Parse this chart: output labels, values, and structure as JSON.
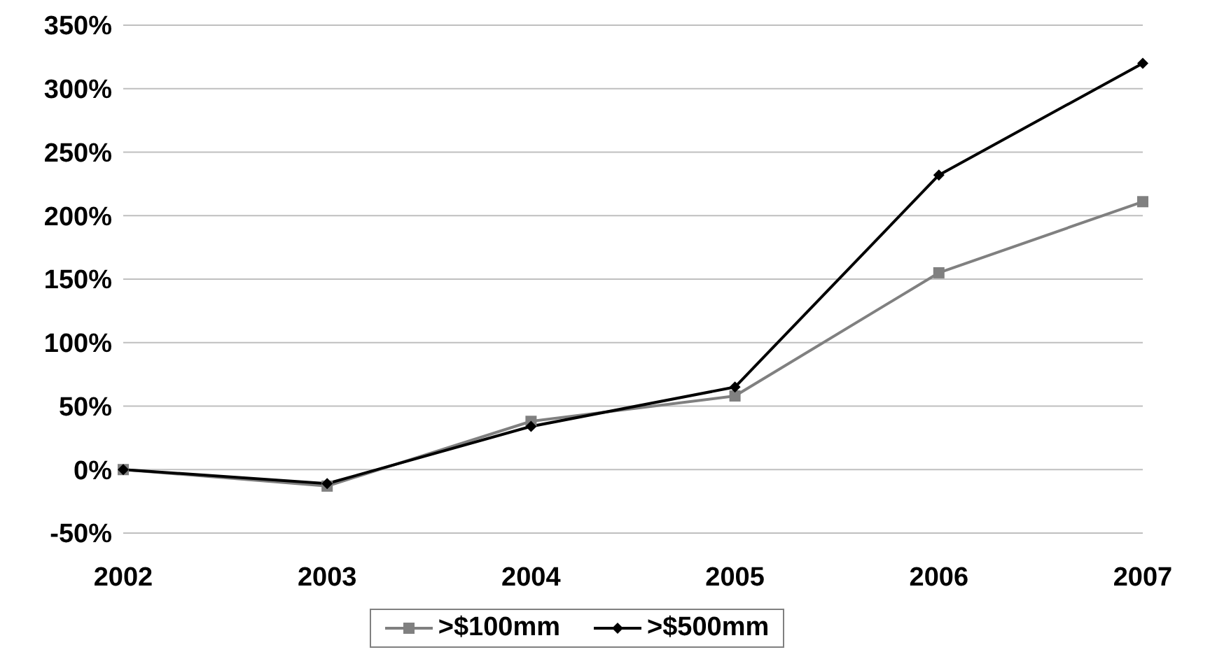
{
  "chart_data": {
    "type": "line",
    "categories": [
      "2002",
      "2003",
      "2004",
      "2005",
      "2006",
      "2007"
    ],
    "series": [
      {
        "name": ">$100mm",
        "color": "#808080",
        "marker": "square",
        "values": [
          0,
          -13,
          38,
          58,
          155,
          211
        ]
      },
      {
        "name": ">$500mm",
        "color": "#000000",
        "marker": "diamond",
        "values": [
          0,
          -11,
          34,
          65,
          232,
          320
        ]
      }
    ],
    "ylim": [
      -50,
      350
    ],
    "yticks": [
      {
        "value": -50,
        "label": "-50%"
      },
      {
        "value": 0,
        "label": "0%"
      },
      {
        "value": 50,
        "label": "50%"
      },
      {
        "value": 100,
        "label": "100%"
      },
      {
        "value": 150,
        "label": "150%"
      },
      {
        "value": 200,
        "label": "200%"
      },
      {
        "value": 250,
        "label": "250%"
      },
      {
        "value": 300,
        "label": "300%"
      },
      {
        "value": 350,
        "label": "350%"
      }
    ],
    "grid": "y",
    "legend": "bottom"
  }
}
